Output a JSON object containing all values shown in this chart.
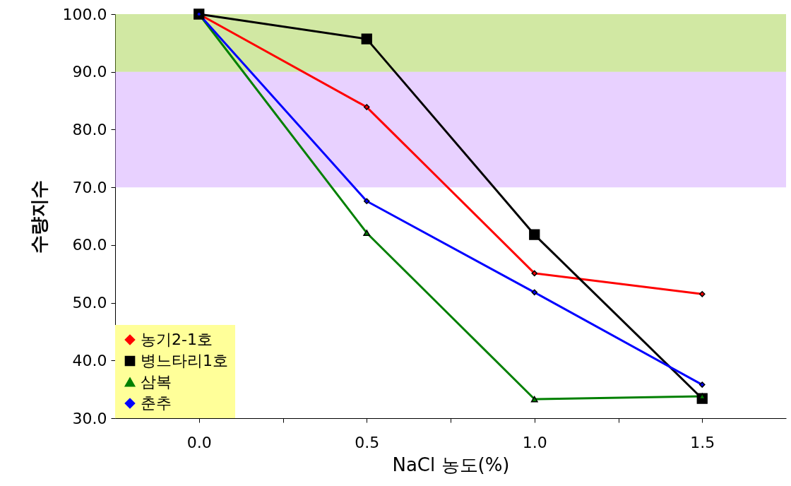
{
  "chart_data": {
    "type": "line",
    "xlabel": "NaCl 농도(%)",
    "ylabel": "수량지수",
    "x": [
      0,
      0.5,
      1.0,
      1.5
    ],
    "xlim": [
      -0.25,
      1.75
    ],
    "xticks": [
      {
        "value": 0,
        "label": "0.0"
      },
      {
        "value": 0.25,
        "label": null
      },
      {
        "value": 0.5,
        "label": "0.5"
      },
      {
        "value": 0.75,
        "label": null
      },
      {
        "value": 1,
        "label": "1.0"
      },
      {
        "value": 1.25,
        "label": null
      },
      {
        "value": 1.5,
        "label": "1.5"
      }
    ],
    "ylim": [
      30,
      100
    ],
    "yticks": [
      {
        "value": 30,
        "label": "30.0"
      },
      {
        "value": 40,
        "label": "40.0"
      },
      {
        "value": 50,
        "label": "50.0"
      },
      {
        "value": 60,
        "label": "60.0"
      },
      {
        "value": 70,
        "label": "70.0"
      },
      {
        "value": 80,
        "label": "80.0"
      },
      {
        "value": 90,
        "label": "90.0"
      },
      {
        "value": 100,
        "label": "100.0"
      }
    ],
    "series": [
      {
        "name": "농기2-1호",
        "color": "#ff0000",
        "marker": "diamond",
        "values": [
          100,
          83.9,
          55.1,
          51.5
        ]
      },
      {
        "name": "병느타리1호",
        "color": "#000000",
        "marker": "square",
        "values": [
          100,
          95.7,
          61.8,
          33.4
        ]
      },
      {
        "name": "삼복",
        "color": "#008000",
        "marker": "triangle",
        "values": [
          100,
          62.1,
          33.3,
          33.8
        ]
      },
      {
        "name": "춘추",
        "color": "#0000ff",
        "marker": "diamond",
        "values": [
          100,
          67.6,
          51.8,
          35.8
        ]
      }
    ],
    "bands": [
      {
        "axis": "y",
        "from": 90,
        "to": 100,
        "color": "#99cc33"
      },
      {
        "axis": "y",
        "from": 70,
        "to": 90,
        "color": "#cc99ff"
      }
    ],
    "grid": false,
    "legend": "bottom left"
  }
}
